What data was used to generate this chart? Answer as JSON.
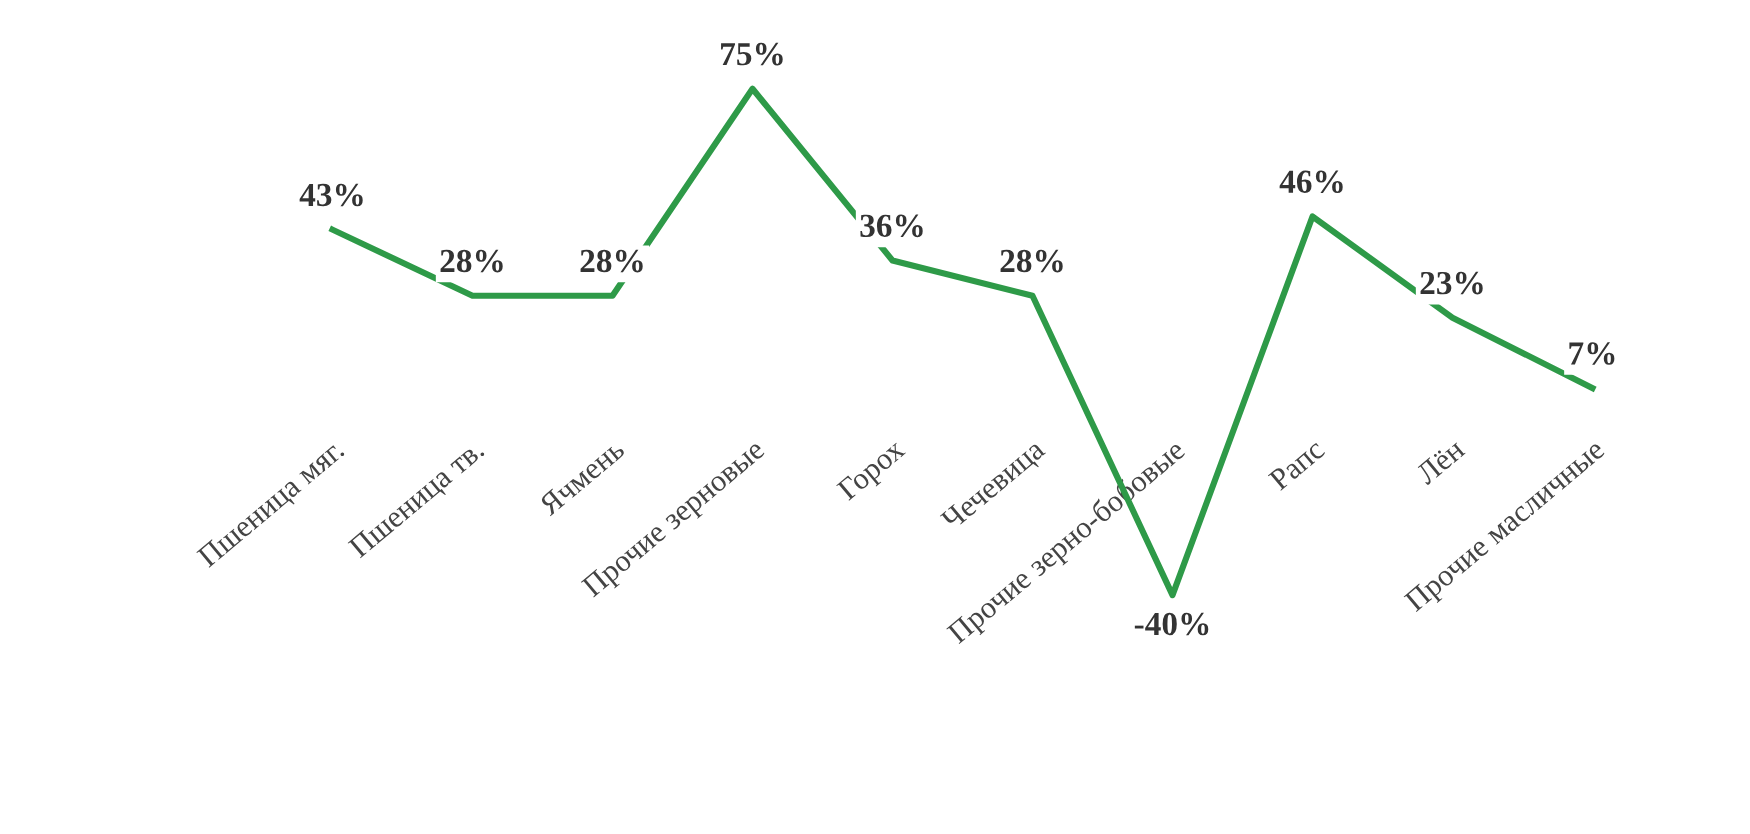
{
  "chart_data": {
    "type": "line",
    "categories": [
      "Пшеница мяг.",
      "Пшеница тв.",
      "Ячмень",
      "Прочие зерновые",
      "Горох",
      "Чечевица",
      "Прочие зерно-бобовые",
      "Рапс",
      "Лён",
      "Прочие масличные"
    ],
    "series": [
      {
        "color": "#2e9a48",
        "values": [
          43,
          28,
          28,
          75,
          36,
          28,
          -40,
          46,
          23,
          7
        ],
        "value_labels": [
          "43%",
          "28%",
          "28%",
          "75%",
          "36%",
          "28%",
          "-40%",
          "46%",
          "23%",
          "7%"
        ]
      }
    ],
    "legend": false,
    "line_style": "solid"
  }
}
